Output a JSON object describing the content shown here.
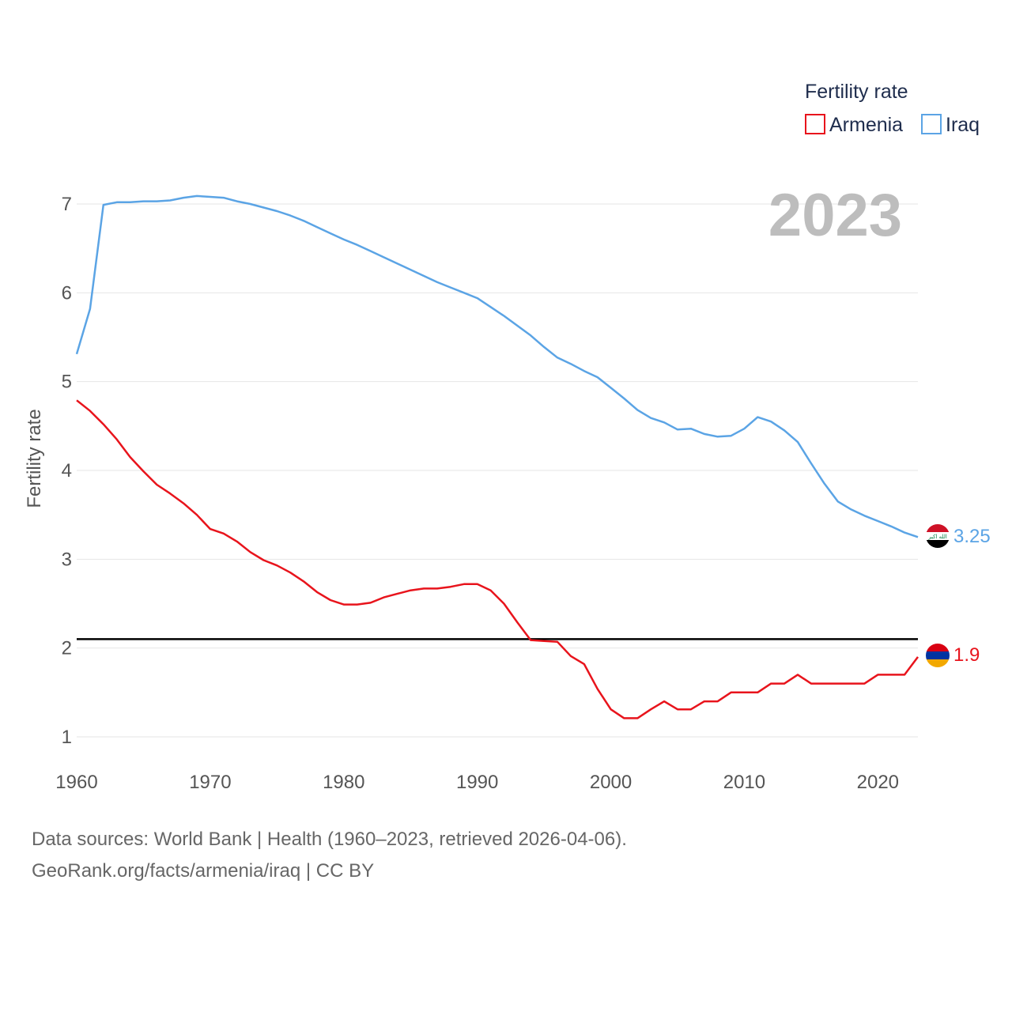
{
  "chart_data": {
    "type": "line",
    "title": "",
    "legend_title": "Fertility rate",
    "year_label": "2023",
    "xlabel": "",
    "ylabel": "Fertility rate",
    "xlim": [
      1960,
      2023
    ],
    "ylim": [
      1,
      7
    ],
    "x_ticks": [
      1960,
      1970,
      1980,
      1990,
      2000,
      2010,
      2020
    ],
    "y_ticks": [
      1,
      2,
      3,
      4,
      5,
      6,
      7
    ],
    "reference_line": {
      "y": 2.1,
      "color": "#000000"
    },
    "x": [
      1960,
      1961,
      1962,
      1963,
      1964,
      1965,
      1966,
      1967,
      1968,
      1969,
      1970,
      1971,
      1972,
      1973,
      1974,
      1975,
      1976,
      1977,
      1978,
      1979,
      1980,
      1981,
      1982,
      1983,
      1984,
      1985,
      1986,
      1987,
      1988,
      1989,
      1990,
      1991,
      1992,
      1993,
      1994,
      1995,
      1996,
      1997,
      1998,
      1999,
      2000,
      2001,
      2002,
      2003,
      2004,
      2005,
      2006,
      2007,
      2008,
      2009,
      2010,
      2011,
      2012,
      2013,
      2014,
      2015,
      2016,
      2017,
      2018,
      2019,
      2020,
      2021,
      2022,
      2023
    ],
    "series": [
      {
        "name": "Armenia",
        "color": "#e8141c",
        "end_label": "1.9",
        "values": [
          4.79,
          4.67,
          4.52,
          4.35,
          4.15,
          3.99,
          3.84,
          3.74,
          3.63,
          3.5,
          3.34,
          3.29,
          3.2,
          3.08,
          2.99,
          2.93,
          2.85,
          2.75,
          2.63,
          2.54,
          2.49,
          2.49,
          2.51,
          2.57,
          2.61,
          2.65,
          2.67,
          2.67,
          2.69,
          2.72,
          2.72,
          2.65,
          2.5,
          2.29,
          2.09,
          2.08,
          2.07,
          1.91,
          1.82,
          1.54,
          1.31,
          1.21,
          1.21,
          1.31,
          1.4,
          1.31,
          1.31,
          1.4,
          1.4,
          1.5,
          1.5,
          1.5,
          1.6,
          1.6,
          1.7,
          1.6,
          1.6,
          1.6,
          1.6,
          1.6,
          1.7,
          1.7,
          1.7,
          1.9
        ]
      },
      {
        "name": "Iraq",
        "color": "#5ba4e5",
        "end_label": "3.25",
        "values": [
          5.31,
          5.82,
          6.99,
          7.02,
          7.02,
          7.03,
          7.03,
          7.04,
          7.07,
          7.09,
          7.08,
          7.07,
          7.03,
          7.0,
          6.96,
          6.92,
          6.87,
          6.81,
          6.74,
          6.67,
          6.6,
          6.54,
          6.47,
          6.4,
          6.33,
          6.26,
          6.19,
          6.12,
          6.06,
          6.0,
          5.94,
          5.84,
          5.74,
          5.63,
          5.52,
          5.39,
          5.27,
          5.2,
          5.12,
          5.05,
          4.93,
          4.81,
          4.68,
          4.59,
          4.54,
          4.46,
          4.47,
          4.41,
          4.38,
          4.39,
          4.47,
          4.6,
          4.55,
          4.45,
          4.32,
          4.08,
          3.85,
          3.65,
          3.56,
          3.49,
          3.43,
          3.37,
          3.3,
          3.25
        ]
      }
    ]
  },
  "footer": {
    "source_line": "Data sources: World Bank | Health (1960–2023, retrieved 2026-04-06).",
    "credit_line": "GeoRank.org/facts/armenia/iraq | CC BY"
  },
  "flags": {
    "iraq_flag_text": "الله اكبر",
    "colors": {
      "iraq_red": "#ce1126",
      "iraq_white": "#ffffff",
      "iraq_black": "#000000",
      "iraq_green": "#007a3d",
      "armenia_red": "#d90012",
      "armenia_blue": "#0033a0",
      "armenia_orange": "#f2a800"
    }
  }
}
